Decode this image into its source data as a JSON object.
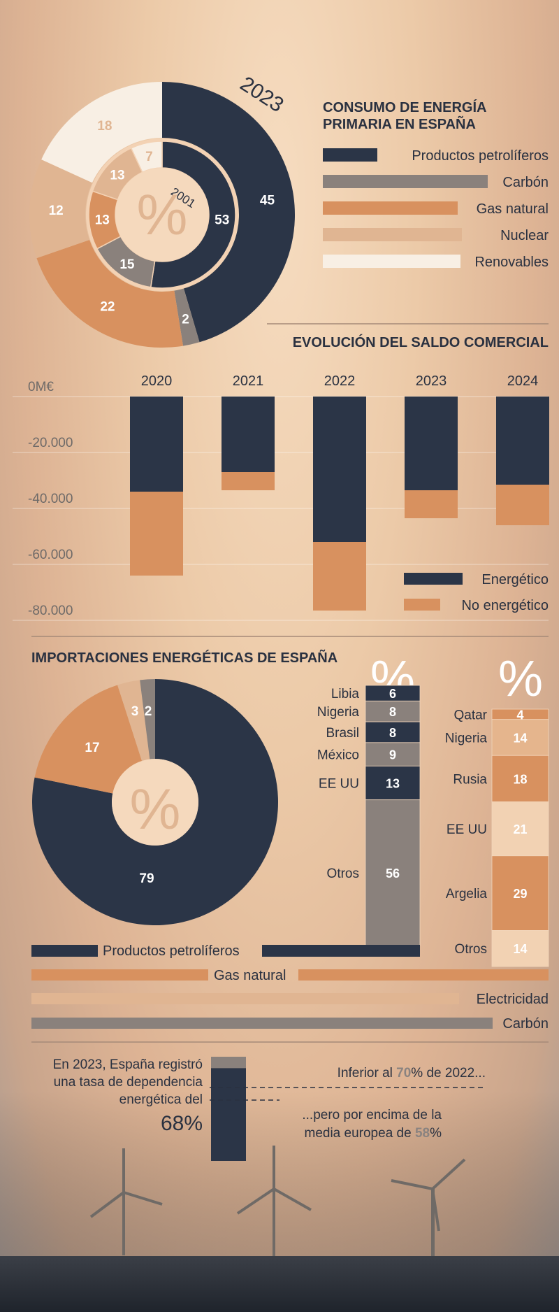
{
  "colors": {
    "navy": "#2b3547",
    "gray": "#8a817c",
    "orange": "#d8915f",
    "beige": "#e0b592",
    "cream": "#f8efe4",
    "tan": "#e5b58d",
    "light_tan": "#f2d2b3",
    "dark_text": "#2a3140"
  },
  "consumption": {
    "title_line1": "CONSUMO DE ENERGÍA",
    "title_line2": "PRIMARIA EN ESPAÑA",
    "outer_year": "2023",
    "inner_year": "2001",
    "percent_symbol": "%",
    "legend": [
      {
        "label": "Productos petrolíferos",
        "color": "#2b3547"
      },
      {
        "label": "Carbón",
        "color": "#8a817c"
      },
      {
        "label": "Gas natural",
        "color": "#d8915f"
      },
      {
        "label": "Nuclear",
        "color": "#e0b592"
      },
      {
        "label": "Renovables",
        "color": "#f8efe4"
      }
    ]
  },
  "trade_balance": {
    "title": "EVOLUCIÓN DEL SALDO COMERCIAL",
    "legend": [
      {
        "label": "Energético",
        "color": "#2b3547"
      },
      {
        "label": "No energético",
        "color": "#d8915f"
      }
    ]
  },
  "imports": {
    "title": "IMPORTACIONES ENERGÉTICAS DE ESPAÑA",
    "percent_symbol": "%",
    "petro_origin": {
      "percent_symbol": "%"
    },
    "gas_origin": {
      "percent_symbol": "%"
    }
  },
  "dependency": {
    "line1": "En 2023, España registró",
    "line2": "una tasa de dependencia",
    "line3": "energética del",
    "value_label": "68%",
    "comp1_prefix": "Inferior al ",
    "comp1_value": "70",
    "comp1_suffix": "% de 2022...",
    "comp2_line1": "...pero por encima de la",
    "comp2_line2_prefix": "media europea de ",
    "comp2_value": "58",
    "comp2_suffix": "%"
  },
  "chart_data": [
    {
      "type": "pie",
      "title": "CONSUMO DE ENERGÍA PRIMARIA EN ESPAÑA",
      "variant": "nested-donut",
      "series": [
        {
          "name": "2023",
          "labels": [
            "Productos petrolíferos",
            "Carbón",
            "Gas natural",
            "Nuclear",
            "Renovables"
          ],
          "values": [
            45,
            2,
            22,
            12,
            18
          ]
        },
        {
          "name": "2001",
          "labels": [
            "Productos petrolíferos",
            "Carbón",
            "Gas natural",
            "Nuclear",
            "Renovables"
          ],
          "values": [
            53,
            15,
            13,
            13,
            7
          ]
        }
      ]
    },
    {
      "type": "bar",
      "title": "EVOLUCIÓN DEL SALDO COMERCIAL",
      "stacked": true,
      "categories": [
        "2020",
        "2021",
        "2022",
        "2023",
        "2024"
      ],
      "series": [
        {
          "name": "Energético",
          "values": [
            -34000,
            -27000,
            -52000,
            -33500,
            -31500
          ]
        },
        {
          "name": "No energético",
          "values": [
            -30000,
            -6500,
            -24500,
            -10000,
            -14500
          ]
        }
      ],
      "yticks": [
        "0M€",
        "-20.000",
        "-40.000",
        "-60.000",
        "-80.000"
      ],
      "ylim": [
        -80000,
        0
      ]
    },
    {
      "type": "pie",
      "title": "IMPORTACIONES ENERGÉTICAS DE ESPAÑA",
      "labels": [
        "Productos petrolíferos",
        "Gas natural",
        "Electricidad",
        "Carbón"
      ],
      "values": [
        79,
        17,
        3,
        2
      ],
      "legend": [
        {
          "label": "Productos petrolíferos",
          "color": "#2b3547"
        },
        {
          "label": "Gas natural",
          "color": "#d8915f"
        },
        {
          "label": "Electricidad",
          "color": "#e0b592"
        },
        {
          "label": "Carbón",
          "color": "#8a817c"
        }
      ]
    },
    {
      "type": "bar",
      "stacked": true,
      "categories": [
        "Libia",
        "Nigeria",
        "Brasil",
        "México",
        "EE UU",
        "Otros"
      ],
      "values": [
        6,
        8,
        8,
        9,
        13,
        56
      ],
      "colors": [
        "#2b3547",
        "#8a817c",
        "#2b3547",
        "#8a817c",
        "#2b3547",
        "#8a817c"
      ]
    },
    {
      "type": "bar",
      "stacked": true,
      "categories": [
        "Qatar",
        "Nigeria",
        "Rusia",
        "EE UU",
        "Argelia",
        "Otros"
      ],
      "values": [
        4,
        14,
        18,
        21,
        29,
        14
      ],
      "colors": [
        "#d8915f",
        "#e5b58d",
        "#d8915f",
        "#f2d2b3",
        "#d8915f",
        "#f2d2b3"
      ]
    },
    {
      "type": "bar",
      "stacked": true,
      "categories": [
        "2022",
        "2023"
      ],
      "values": [
        70,
        68
      ]
    }
  ]
}
